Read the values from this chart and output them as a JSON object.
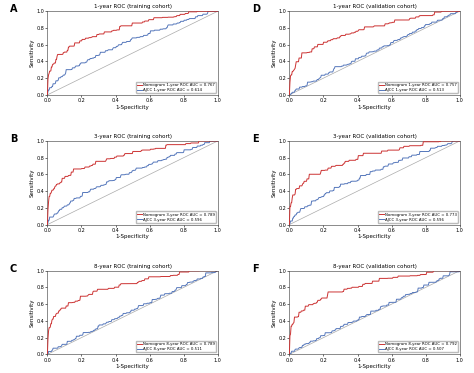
{
  "subplots": [
    {
      "label": "A",
      "title": "1-year ROC (training cohort)",
      "leg1": "Nomogram 1-year ROC AUC = 0.767",
      "leg2": "AJCC 1-year ROC AUC = 0.614",
      "red_auc": 0.767,
      "blue_auc": 0.614,
      "seed_r": 101,
      "seed_b": 102
    },
    {
      "label": "D",
      "title": "1-year ROC (validation cohort)",
      "leg1": "Nomogram 1-year ROC AUC = 0.757",
      "leg2": "AJCC 1-year ROC AUC = 0.513",
      "red_auc": 0.757,
      "blue_auc": 0.513,
      "seed_r": 201,
      "seed_b": 202
    },
    {
      "label": "B",
      "title": "3-year ROC (training cohort)",
      "leg1": "Nomogram 3-year ROC AUC = 0.789",
      "leg2": "AJCC 3-year ROC AUC = 0.596",
      "red_auc": 0.789,
      "blue_auc": 0.596,
      "seed_r": 301,
      "seed_b": 302
    },
    {
      "label": "E",
      "title": "3-year ROC (validation cohort)",
      "leg1": "Nomogram 3-year ROC AUC = 0.773",
      "leg2": "AJCC 3-year ROC AUC = 0.596",
      "red_auc": 0.773,
      "blue_auc": 0.596,
      "seed_r": 401,
      "seed_b": 402
    },
    {
      "label": "C",
      "title": "8-year ROC (training cohort)",
      "leg1": "Nomogram 8-year ROC AUC = 0.789",
      "leg2": "AJCC 8-year ROC AUC = 0.511",
      "red_auc": 0.789,
      "blue_auc": 0.511,
      "seed_r": 501,
      "seed_b": 502
    },
    {
      "label": "F",
      "title": "8-year ROC (validation cohort)",
      "leg1": "Nomogram 8-year ROC AUC = 0.792",
      "leg2": "AJCC 8-year ROC AUC = 0.507",
      "red_auc": 0.792,
      "blue_auc": 0.507,
      "seed_r": 601,
      "seed_b": 602
    }
  ],
  "red_color": "#cc3333",
  "blue_color": "#5577bb",
  "diag_color": "#aaaaaa",
  "xlabel": "1-Specificity",
  "ylabel": "Sensitivity",
  "tick_vals": [
    0.0,
    0.2,
    0.4,
    0.6,
    0.8,
    1.0
  ],
  "tick_labels": [
    "0.0",
    "0.2",
    "0.4",
    "0.6",
    "0.8",
    "1.0"
  ]
}
